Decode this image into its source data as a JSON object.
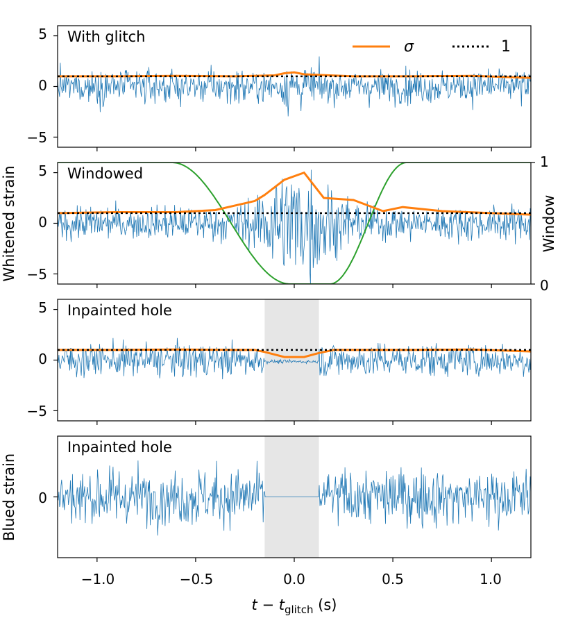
{
  "colors": {
    "signal": "#1f77b4",
    "sigma": "#ff7f0e",
    "window": "#2ca02c",
    "reference": "#000000",
    "hole": "#e6e6e6"
  },
  "legend": {
    "sigma_label": "σ",
    "one_label": "1"
  },
  "axis_labels": {
    "xlabel_t": "t",
    "xlabel_minus": " − ",
    "xlabel_tg": "t",
    "xlabel_sub": "glitch",
    "xlabel_unit": " (s)",
    "ylabel_whitened": "Whitened strain",
    "ylabel_blued": "Blued strain",
    "ylabel_window": "Window"
  },
  "x_tick_labels": [
    "−1.0",
    "−0.5",
    "0.0",
    "0.5",
    "1.0"
  ],
  "y_tick_labels": [
    "5",
    "0",
    "−5"
  ],
  "window_tick_labels": [
    "1",
    "0"
  ],
  "panels": [
    {
      "label": "With glitch"
    },
    {
      "label": "Windowed"
    },
    {
      "label": "Inpainted hole"
    },
    {
      "label": "Inpainted hole"
    }
  ],
  "chart_data": [
    {
      "type": "line",
      "title": "With glitch",
      "xlim": [
        -1.2,
        1.2
      ],
      "ylim": [
        -6,
        6
      ],
      "xticks": [
        -1.0,
        -0.5,
        0.0,
        0.5,
        1.0
      ],
      "yticks": [
        5,
        0,
        -5
      ],
      "ylabel": "Whitened strain",
      "legend": "top-right",
      "series": [
        {
          "name": "σ",
          "x": [
            -1.2,
            -0.9,
            -0.6,
            -0.3,
            -0.1,
            -0.05,
            0.0,
            0.05,
            0.3,
            0.6,
            0.9,
            1.2
          ],
          "values": [
            1.0,
            1.0,
            1.05,
            1.0,
            1.1,
            1.3,
            1.4,
            1.2,
            1.0,
            1.0,
            1.05,
            0.85
          ]
        },
        {
          "name": "1",
          "x": [
            -1.2,
            1.2
          ],
          "values": [
            1,
            1
          ]
        }
      ]
    },
    {
      "type": "line",
      "title": "Windowed",
      "xlim": [
        -1.2,
        1.2
      ],
      "ylim": [
        -6,
        6
      ],
      "xticks": [
        -1.0,
        -0.5,
        0.0,
        0.5,
        1.0
      ],
      "yticks": [
        5,
        0,
        -5
      ],
      "ylabel": "Whitened strain",
      "y2label": "Window",
      "y2lim": [
        0,
        1
      ],
      "y2ticks": [
        1,
        0
      ],
      "window": {
        "x_start": -0.62,
        "x_end": 0.57,
        "flat_from": -0.02,
        "flat_to": 0.18
      },
      "series": [
        {
          "name": "σ",
          "x": [
            -1.2,
            -0.9,
            -0.6,
            -0.4,
            -0.2,
            -0.15,
            -0.05,
            0.05,
            0.15,
            0.3,
            0.45,
            0.55,
            0.75,
            1.0,
            1.2
          ],
          "values": [
            1.0,
            1.1,
            1.1,
            1.3,
            2.2,
            2.8,
            4.3,
            5.0,
            2.5,
            2.3,
            1.2,
            1.6,
            1.2,
            1.0,
            0.85
          ]
        },
        {
          "name": "1",
          "x": [
            -1.2,
            1.2
          ],
          "values": [
            1,
            1
          ]
        }
      ]
    },
    {
      "type": "line",
      "title": "Inpainted hole",
      "xlim": [
        -1.2,
        1.2
      ],
      "ylim": [
        -6,
        6
      ],
      "xticks": [
        -1.0,
        -0.5,
        0.0,
        0.5,
        1.0
      ],
      "yticks": [
        5,
        0,
        -5
      ],
      "ylabel": "Whitened strain",
      "hole": [
        -0.15,
        0.125
      ],
      "series": [
        {
          "name": "σ",
          "x": [
            -1.2,
            -0.9,
            -0.6,
            -0.3,
            -0.2,
            -0.15,
            -0.05,
            0.05,
            0.125,
            0.2,
            0.6,
            0.9,
            1.2
          ],
          "values": [
            1.0,
            1.0,
            1.05,
            1.0,
            1.0,
            0.8,
            0.3,
            0.3,
            0.7,
            1.0,
            1.0,
            1.05,
            0.85
          ]
        },
        {
          "name": "1",
          "x": [
            -1.2,
            1.2
          ],
          "values": [
            1,
            1
          ]
        }
      ]
    },
    {
      "type": "line",
      "title": "Inpainted hole",
      "xlim": [
        -1.2,
        1.2
      ],
      "ylim": [
        -1,
        1
      ],
      "xticks": [
        -1.0,
        -0.5,
        0.0,
        0.5,
        1.0
      ],
      "yticks": [
        0
      ],
      "ylabel": "Blued strain",
      "xlabel": "t − t_glitch (s)",
      "hole": [
        -0.15,
        0.125
      ]
    }
  ]
}
